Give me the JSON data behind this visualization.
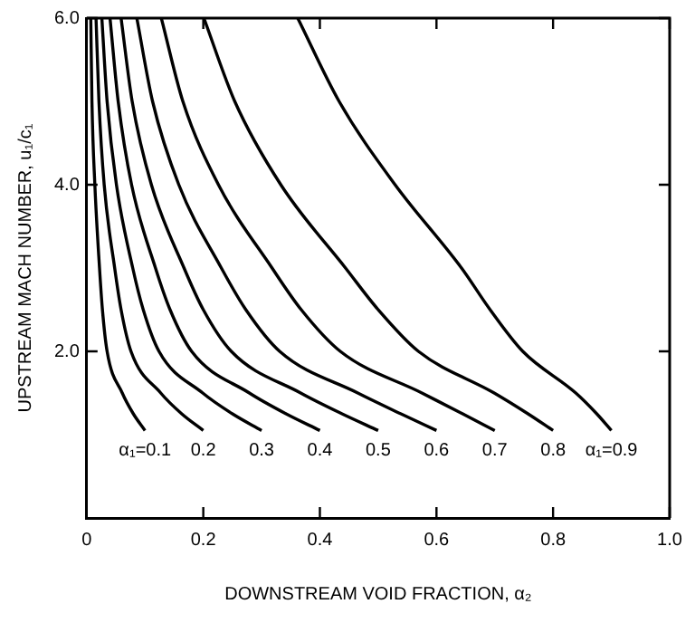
{
  "chart_data": {
    "type": "line",
    "xlabel": "DOWNSTREAM VOID FRACTION, α₂",
    "ylabel": "UPSTREAM MACH NUMBER, u₁/c₁",
    "xlim": [
      0,
      1
    ],
    "ylim": [
      0,
      6
    ],
    "xticks": [
      0,
      0.2,
      0.4,
      0.6,
      0.8,
      {
        "value": 1,
        "label": "1.0"
      }
    ],
    "yticks": [
      {
        "value": 2,
        "label": "2.0"
      },
      {
        "value": 4,
        "label": "4.0"
      },
      {
        "value": 6,
        "label": "6.0"
      }
    ],
    "marker": "none",
    "line_style": "solid",
    "series": [
      {
        "color": "#000000",
        "x": [
          0.1,
          0.08,
          0.061,
          0.035,
          0.027,
          0.022,
          0.014,
          0.009,
          0.007
        ],
        "values": [
          1.05,
          1.25,
          1.5,
          2,
          2.5,
          3,
          4,
          5,
          6
        ]
      },
      {
        "color": "#000000",
        "x": [
          0.2,
          0.163,
          0.127,
          0.076,
          0.059,
          0.048,
          0.03,
          0.021,
          0.016
        ],
        "values": [
          1.05,
          1.25,
          1.5,
          2,
          2.5,
          3,
          4,
          5,
          6
        ]
      },
      {
        "color": "#000000",
        "x": [
          0.3,
          0.25,
          0.199,
          0.124,
          0.097,
          0.079,
          0.051,
          0.035,
          0.026
        ],
        "values": [
          1.05,
          1.25,
          1.5,
          2,
          2.5,
          3,
          4,
          5,
          6
        ]
      },
      {
        "color": "#000000",
        "x": [
          0.4,
          0.342,
          0.279,
          0.18,
          0.143,
          0.118,
          0.077,
          0.054,
          0.04
        ],
        "values": [
          1.05,
          1.25,
          1.5,
          2,
          2.5,
          3,
          4,
          5,
          6
        ]
      },
      {
        "color": "#000000",
        "x": [
          0.5,
          0.438,
          0.367,
          0.248,
          0.2,
          0.167,
          0.111,
          0.078,
          0.059
        ],
        "values": [
          1.05,
          1.25,
          1.5,
          2,
          2.5,
          3,
          4,
          5,
          6
        ]
      },
      {
        "color": "#000000",
        "x": [
          0.6,
          0.539,
          0.465,
          0.331,
          0.273,
          0.231,
          0.158,
          0.113,
          0.086
        ],
        "values": [
          1.05,
          1.25,
          1.5,
          2,
          2.5,
          3,
          4,
          5,
          6
        ]
      },
      {
        "color": "#000000",
        "x": [
          0.7,
          0.645,
          0.575,
          0.435,
          0.368,
          0.318,
          0.226,
          0.165,
          0.128
        ],
        "values": [
          1.05,
          1.25,
          1.5,
          2,
          2.5,
          3,
          4,
          5,
          6
        ]
      },
      {
        "color": "#000000",
        "x": [
          0.8,
          0.757,
          0.699,
          0.569,
          0.5,
          0.444,
          0.333,
          0.254,
          0.201
        ],
        "values": [
          1.05,
          1.25,
          1.5,
          2,
          2.5,
          3,
          4,
          5,
          6
        ]
      },
      {
        "color": "#000000",
        "x": [
          0.9,
          0.875,
          0.839,
          0.748,
          0.692,
          0.643,
          0.529,
          0.433,
          0.362
        ],
        "values": [
          1.05,
          1.25,
          1.5,
          2,
          2.5,
          3,
          4,
          5,
          6
        ]
      }
    ],
    "annotations": [
      {
        "text": "α₁=0.1",
        "x": 0.1,
        "y": 1.05
      },
      {
        "text": "0.2",
        "x": 0.2,
        "y": 1.05
      },
      {
        "text": "0.3",
        "x": 0.3,
        "y": 1.05
      },
      {
        "text": "0.4",
        "x": 0.4,
        "y": 1.05
      },
      {
        "text": "0.5",
        "x": 0.5,
        "y": 1.05
      },
      {
        "text": "0.6",
        "x": 0.6,
        "y": 1.05
      },
      {
        "text": "0.7",
        "x": 0.7,
        "y": 1.05
      },
      {
        "text": "0.8",
        "x": 0.8,
        "y": 1.05
      },
      {
        "text": "α₁=0.9",
        "x": 0.9,
        "y": 1.05
      }
    ]
  }
}
